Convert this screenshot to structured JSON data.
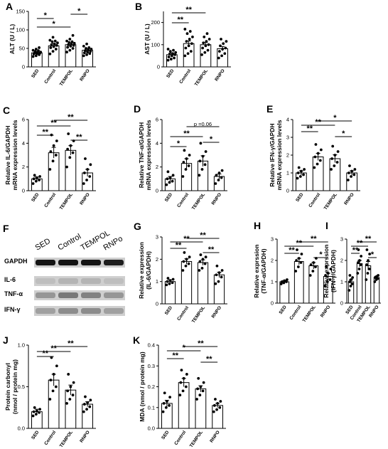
{
  "colors": {
    "bar_fill": "#ffffff",
    "bar_stroke": "#000000",
    "point_fill": "#000000",
    "blot_band": "#1a1a1a",
    "blot_bg": "#cfcfcf"
  },
  "chart_data": [
    {
      "panel": "A",
      "type": "bar",
      "categories": [
        "SED",
        "Control",
        "TEMPOL",
        "RNPO"
      ],
      "values": [
        38,
        57,
        60,
        45
      ],
      "errors": [
        3,
        6,
        5,
        4
      ],
      "points": [
        [
          28,
          30,
          33,
          35,
          36,
          37,
          38,
          39,
          40,
          42,
          44,
          45,
          48,
          52
        ],
        [
          35,
          42,
          48,
          52,
          55,
          58,
          60,
          62,
          65,
          68,
          70,
          72,
          80
        ],
        [
          40,
          45,
          50,
          53,
          56,
          58,
          60,
          62,
          64,
          66,
          68,
          70,
          75,
          85
        ],
        [
          30,
          33,
          36,
          38,
          40,
          42,
          44,
          46,
          48,
          50,
          52,
          56,
          62
        ]
      ],
      "ylabel": "ALT (U / L)",
      "ylim": [
        0,
        150
      ],
      "yticks": [
        0,
        50,
        100,
        150
      ],
      "sig": [
        {
          "from": 0,
          "to": 1,
          "label": "*"
        },
        {
          "from": 0,
          "to": 2,
          "label": "*"
        },
        {
          "from": 2,
          "to": 3,
          "label": "*"
        }
      ]
    },
    {
      "panel": "B",
      "type": "bar",
      "categories": [
        "SED",
        "Control",
        "TEMPOL",
        "RNPO"
      ],
      "values": [
        55,
        105,
        100,
        82
      ],
      "errors": [
        8,
        12,
        10,
        10
      ],
      "points": [
        [
          30,
          35,
          40,
          45,
          50,
          55,
          58,
          60,
          65,
          70,
          75,
          80
        ],
        [
          50,
          60,
          70,
          85,
          95,
          105,
          115,
          125,
          135,
          150,
          160,
          170
        ],
        [
          55,
          65,
          75,
          85,
          95,
          100,
          108,
          115,
          125,
          135,
          150
        ],
        [
          40,
          50,
          60,
          70,
          80,
          85,
          95,
          105,
          115,
          125
        ]
      ],
      "ylabel": "AST (U / L)",
      "ylim": [
        0,
        250
      ],
      "yticks": [
        0,
        100,
        200
      ],
      "sig": [
        {
          "from": 0,
          "to": 1,
          "label": "**"
        },
        {
          "from": 0,
          "to": 2,
          "label": "**"
        }
      ]
    },
    {
      "panel": "C",
      "type": "bar",
      "categories": [
        "SED",
        "Control",
        "TEMPOL",
        "RNPO"
      ],
      "values": [
        1.0,
        3.2,
        3.4,
        1.5
      ],
      "errors": [
        0.15,
        0.45,
        0.4,
        0.3
      ],
      "points": [
        [
          0.6,
          0.8,
          0.9,
          1.0,
          1.1,
          1.2,
          1.3
        ],
        [
          1.8,
          2.5,
          3.0,
          3.3,
          3.8,
          4.2,
          4.7
        ],
        [
          2.0,
          2.8,
          3.2,
          3.5,
          3.8,
          4.2,
          4.8
        ],
        [
          0.6,
          0.9,
          1.2,
          1.5,
          1.8,
          2.2,
          2.7
        ]
      ],
      "ylabel": "Relative IL-6/GAPDH mRNA expression levels",
      "ylim": [
        0,
        6
      ],
      "yticks": [
        0,
        2,
        4,
        6
      ],
      "sig": [
        {
          "from": 0,
          "to": 1,
          "label": "**"
        },
        {
          "from": 0,
          "to": 2,
          "label": "**"
        },
        {
          "from": 1,
          "to": 3,
          "label": "**"
        },
        {
          "from": 2,
          "to": 3,
          "label": "**"
        }
      ]
    },
    {
      "panel": "D",
      "type": "bar",
      "categories": [
        "SED",
        "Control",
        "TEMPOL",
        "RNPO"
      ],
      "values": [
        1.0,
        2.3,
        2.5,
        1.2
      ],
      "errors": [
        0.2,
        0.4,
        0.45,
        0.2
      ],
      "points": [
        [
          0.5,
          0.7,
          0.8,
          1.0,
          1.1,
          1.3,
          1.6
        ],
        [
          1.2,
          1.8,
          2.1,
          2.4,
          2.7,
          3.0,
          3.4
        ],
        [
          1.3,
          1.8,
          2.2,
          2.5,
          2.9,
          3.3,
          4.0
        ],
        [
          0.6,
          0.9,
          1.1,
          1.3,
          1.5,
          1.7
        ]
      ],
      "ylabel": "Relative TNF-α/GAPDH mRNA expression levels",
      "ylim": [
        0,
        6
      ],
      "yticks": [
        0,
        2,
        4,
        6
      ],
      "sig": [
        {
          "from": 0,
          "to": 1,
          "label": "*"
        },
        {
          "from": 0,
          "to": 2,
          "label": "**"
        },
        {
          "from": 2,
          "to": 3,
          "label": "*"
        },
        {
          "from": 1,
          "to": 3,
          "label": "p =0.06"
        }
      ]
    },
    {
      "panel": "E",
      "type": "bar",
      "categories": [
        "SED",
        "Control",
        "TEMPOL",
        "RNPO"
      ],
      "values": [
        1.0,
        1.9,
        1.8,
        1.0
      ],
      "errors": [
        0.12,
        0.2,
        0.22,
        0.12
      ],
      "points": [
        [
          0.7,
          0.8,
          0.9,
          1.0,
          1.1,
          1.2,
          1.3
        ],
        [
          1.3,
          1.5,
          1.7,
          1.9,
          2.1,
          2.3,
          2.6
        ],
        [
          1.2,
          1.4,
          1.6,
          1.8,
          2.0,
          2.2,
          2.5
        ],
        [
          0.6,
          0.8,
          0.9,
          1.0,
          1.1,
          1.2,
          1.4
        ]
      ],
      "ylabel": "Relative IFN-γ/GAPDH mRNA expression levels",
      "ylim": [
        0,
        4
      ],
      "yticks": [
        0,
        1,
        2,
        3,
        4
      ],
      "sig": [
        {
          "from": 0,
          "to": 1,
          "label": "**"
        },
        {
          "from": 0,
          "to": 2,
          "label": "**"
        },
        {
          "from": 1,
          "to": 3,
          "label": "*"
        },
        {
          "from": 2,
          "to": 3,
          "label": "*"
        }
      ]
    },
    {
      "panel": "G",
      "type": "bar",
      "categories": [
        "SED",
        "Control",
        "TEMPOL",
        "RNPO"
      ],
      "values": [
        1.0,
        1.9,
        1.85,
        1.3
      ],
      "errors": [
        0.08,
        0.12,
        0.12,
        0.12
      ],
      "points": [
        [
          0.85,
          0.9,
          0.95,
          1.0,
          1.05,
          1.1,
          1.15
        ],
        [
          1.5,
          1.7,
          1.8,
          1.9,
          2.0,
          2.1,
          2.3
        ],
        [
          1.5,
          1.6,
          1.8,
          1.9,
          2.0,
          2.1,
          2.2
        ],
        [
          0.9,
          1.0,
          1.2,
          1.3,
          1.4,
          1.5,
          1.7
        ]
      ],
      "ylabel": "Relative expression (IL-6/GAPDH)",
      "ylim": [
        0,
        3
      ],
      "yticks": [
        0,
        1,
        2,
        3
      ],
      "sig": [
        {
          "from": 0,
          "to": 1,
          "label": "**"
        },
        {
          "from": 0,
          "to": 2,
          "label": "**"
        },
        {
          "from": 1,
          "to": 3,
          "label": "**"
        },
        {
          "from": 2,
          "to": 3,
          "label": "**"
        }
      ]
    },
    {
      "panel": "H",
      "type": "bar",
      "categories": [
        "SED",
        "Control",
        "TEMPOL",
        "RNPO"
      ],
      "values": [
        1.0,
        1.95,
        1.75,
        1.25
      ],
      "errors": [
        0.06,
        0.15,
        0.15,
        0.15
      ],
      "points": [
        [
          0.9,
          0.95,
          1.0,
          1.0,
          1.05,
          1.1
        ],
        [
          1.5,
          1.7,
          1.9,
          2.0,
          2.1,
          2.3,
          2.5
        ],
        [
          1.3,
          1.5,
          1.7,
          1.8,
          1.9,
          2.1
        ],
        [
          0.8,
          1.0,
          1.1,
          1.3,
          1.4,
          1.6,
          1.7
        ]
      ],
      "ylabel": "Relative exprssion (TNF-α/GAPDH)",
      "ylim": [
        0,
        3
      ],
      "yticks": [
        0,
        1,
        2,
        3
      ],
      "sig": [
        {
          "from": 0,
          "to": 1,
          "label": "**"
        },
        {
          "from": 0,
          "to": 2,
          "label": "**"
        },
        {
          "from": 1,
          "to": 3,
          "label": "**"
        },
        {
          "from": 2,
          "to": 3,
          "label": "*"
        }
      ]
    },
    {
      "panel": "I",
      "type": "bar",
      "categories": [
        "SED",
        "Control",
        "TEMPOL",
        "RNPO"
      ],
      "values": [
        1.0,
        1.85,
        1.75,
        1.2
      ],
      "errors": [
        0.1,
        0.15,
        0.2,
        0.06
      ],
      "points": [
        [
          0.6,
          0.8,
          0.9,
          1.0,
          1.1,
          1.2,
          1.3
        ],
        [
          1.4,
          1.6,
          1.8,
          1.9,
          2.0,
          2.2,
          2.5
        ],
        [
          1.1,
          1.4,
          1.6,
          1.8,
          2.0,
          2.3,
          2.5
        ],
        [
          1.0,
          1.1,
          1.15,
          1.2,
          1.25,
          1.3
        ]
      ],
      "ylabel": "Relative exprssion (IFN-γ/GAPDH)",
      "ylim": [
        0,
        3
      ],
      "yticks": [
        0,
        1,
        2,
        3
      ],
      "sig": [
        {
          "from": 0,
          "to": 1,
          "label": "**"
        },
        {
          "from": 0,
          "to": 2,
          "label": "**"
        },
        {
          "from": 1,
          "to": 3,
          "label": "**"
        },
        {
          "from": 2,
          "to": 3,
          "label": "*"
        }
      ]
    },
    {
      "panel": "J",
      "type": "bar",
      "categories": [
        "SED",
        "Control",
        "TEMPOL",
        "RNPO"
      ],
      "values": [
        0.2,
        0.58,
        0.46,
        0.29
      ],
      "errors": [
        0.03,
        0.07,
        0.06,
        0.03
      ],
      "points": [
        [
          0.15,
          0.17,
          0.19,
          0.2,
          0.21,
          0.23,
          0.25
        ],
        [
          0.35,
          0.45,
          0.5,
          0.58,
          0.65,
          0.75,
          0.85
        ],
        [
          0.3,
          0.35,
          0.4,
          0.45,
          0.5,
          0.55,
          0.65
        ],
        [
          0.2,
          0.23,
          0.26,
          0.29,
          0.31,
          0.34,
          0.38
        ]
      ],
      "ylabel": "Protein carbonyl (nmol / protein mg)",
      "ylim": [
        0,
        1.0
      ],
      "yticks": [
        0,
        0.5,
        1.0
      ],
      "ytick_labels": [
        "0.0",
        "0.5",
        "1.0"
      ],
      "sig": [
        {
          "from": 0,
          "to": 1,
          "label": "**"
        },
        {
          "from": 0,
          "to": 2,
          "label": "**"
        },
        {
          "from": 1,
          "to": 3,
          "label": "**"
        }
      ]
    },
    {
      "panel": "K",
      "type": "bar",
      "categories": [
        "SED",
        "Control",
        "TEMPOL",
        "RNPO"
      ],
      "values": [
        0.12,
        0.22,
        0.19,
        0.11
      ],
      "errors": [
        0.015,
        0.02,
        0.015,
        0.01
      ],
      "points": [
        [
          0.08,
          0.1,
          0.11,
          0.12,
          0.13,
          0.15,
          0.17
        ],
        [
          0.16,
          0.18,
          0.2,
          0.22,
          0.24,
          0.26,
          0.28
        ],
        [
          0.14,
          0.16,
          0.18,
          0.19,
          0.2,
          0.22,
          0.24
        ],
        [
          0.08,
          0.09,
          0.1,
          0.11,
          0.12,
          0.13,
          0.14
        ]
      ],
      "ylabel": "MDA (nmol / protein mg)",
      "ylim": [
        0,
        0.4
      ],
      "yticks": [
        0,
        0.1,
        0.2,
        0.3,
        0.4
      ],
      "ytick_labels": [
        "0.0",
        "0.1",
        "0.2",
        "0.3",
        "0.4"
      ],
      "sig": [
        {
          "from": 0,
          "to": 1,
          "label": "**"
        },
        {
          "from": 0,
          "to": 2,
          "label": "*"
        },
        {
          "from": 1,
          "to": 3,
          "label": "**"
        },
        {
          "from": 2,
          "to": 3,
          "label": "**"
        }
      ]
    }
  ],
  "blot": {
    "panel": "F",
    "columns": [
      "SED",
      "Control",
      "TEMPOL",
      "RNPo"
    ],
    "rows": [
      {
        "label": "GAPDH",
        "intensity": [
          1.0,
          1.0,
          1.0,
          0.95
        ]
      },
      {
        "label": "IL-6",
        "intensity": [
          0.15,
          0.2,
          0.2,
          0.15
        ]
      },
      {
        "label": "TNF-α",
        "intensity": [
          0.35,
          0.5,
          0.45,
          0.35
        ]
      },
      {
        "label": "IFN-γ",
        "intensity": [
          0.3,
          0.4,
          0.4,
          0.3
        ]
      }
    ]
  }
}
